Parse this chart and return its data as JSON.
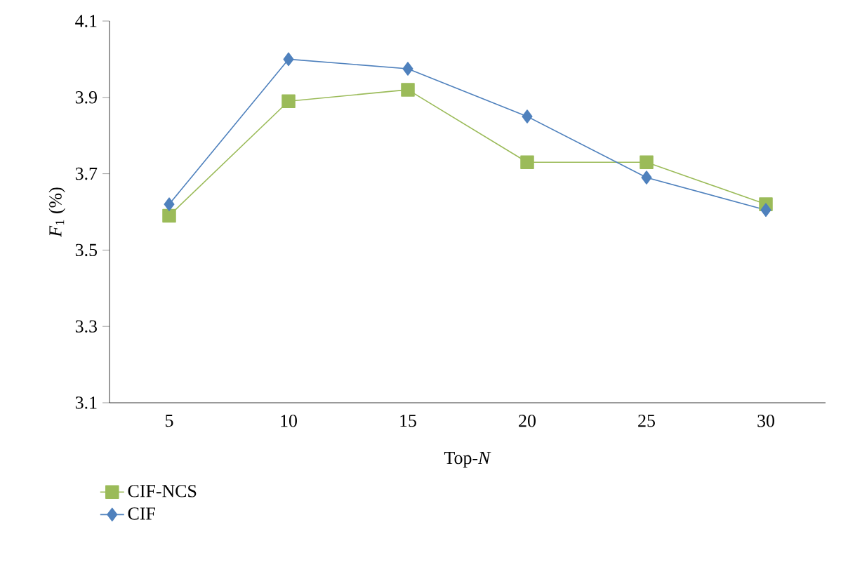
{
  "chart_data": {
    "type": "line",
    "xlabel": "Top-*N*",
    "ylabel": "*F*$_{1}$ (%)",
    "categories": [
      "5",
      "10",
      "15",
      "20",
      "25",
      "30"
    ],
    "series": [
      {
        "name": "CIF-NCS",
        "color": "#9bbb59",
        "marker": "square",
        "values": [
          3.59,
          3.89,
          3.92,
          3.73,
          3.73,
          3.62
        ]
      },
      {
        "name": "CIF",
        "color": "#4f81bd",
        "marker": "diamond",
        "values": [
          3.62,
          4.0,
          3.975,
          3.85,
          3.69,
          3.605
        ]
      }
    ],
    "ylim": [
      3.1,
      4.1
    ],
    "yticks": [
      3.1,
      3.3,
      3.5,
      3.7,
      3.9,
      4.1
    ],
    "grid": false,
    "legend": "bottom left"
  }
}
